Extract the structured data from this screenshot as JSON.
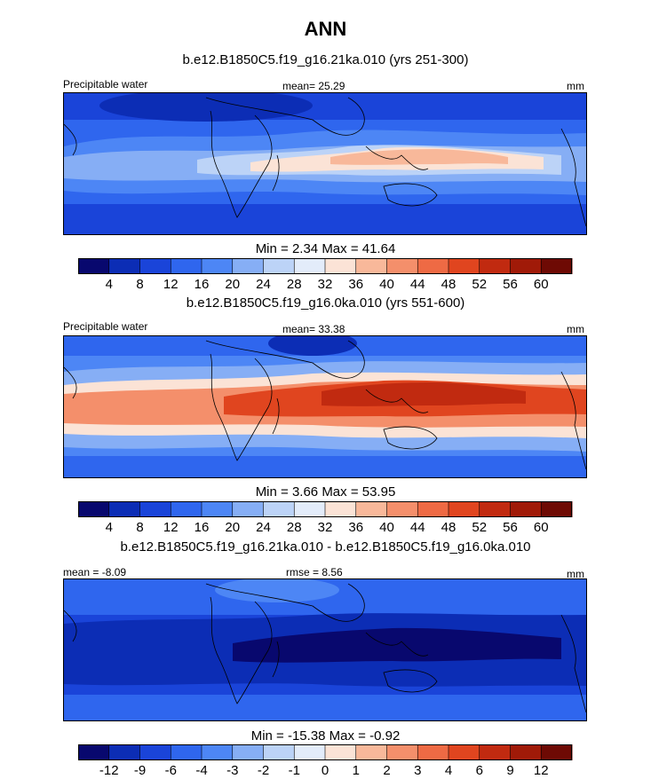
{
  "main_title": "ANN",
  "palettes": {
    "abs": [
      "#08086e",
      "#0c2db5",
      "#1a44d9",
      "#2f66ee",
      "#4d86f5",
      "#86aef5",
      "#bcd3f7",
      "#e3ecfa",
      "#fbe3d6",
      "#f8b89a",
      "#f48f6b",
      "#ee6a44",
      "#e0451f",
      "#c12a10",
      "#a01a08",
      "#6e0a04"
    ],
    "diff": [
      "#08086e",
      "#0c2db5",
      "#1a44d9",
      "#2f66ee",
      "#4d86f5",
      "#86aef5",
      "#bcd3f7",
      "#e3ecfa",
      "#fbe3d6",
      "#f8b89a",
      "#f48f6b",
      "#ee6a44",
      "#e0451f",
      "#c12a10",
      "#a01a08",
      "#6e0a04"
    ]
  },
  "panels": [
    {
      "title": "b.e12.B1850C5.f19_g16.21ka.010 (yrs 251-300)",
      "left_label": "Precipitable water",
      "center_label": "mean=  25.29",
      "right_label": "mm",
      "min_max": "Min =    2.34 Max =  41.64",
      "colorbar_labels": [
        "4",
        "8",
        "12",
        "16",
        "20",
        "24",
        "28",
        "32",
        "36",
        "40",
        "44",
        "48",
        "52",
        "56",
        "60"
      ],
      "palette": "abs"
    },
    {
      "title": "b.e12.B1850C5.f19_g16.0ka.010 (yrs 551-600)",
      "left_label": "Precipitable water",
      "center_label": "mean=  33.38",
      "right_label": "mm",
      "min_max": "Min =    3.66 Max =  53.95",
      "colorbar_labels": [
        "4",
        "8",
        "12",
        "16",
        "20",
        "24",
        "28",
        "32",
        "36",
        "40",
        "44",
        "48",
        "52",
        "56",
        "60"
      ],
      "palette": "abs"
    },
    {
      "title": "b.e12.B1850C5.f19_g16.21ka.010 - b.e12.B1850C5.f19_g16.0ka.010",
      "left_label": "mean =  -8.09",
      "center_label": "rmse =   8.56",
      "right_label": "mm",
      "min_max": "Min = -15.38 Max =  -0.92",
      "colorbar_labels": [
        "-12",
        "-9",
        "-6",
        "-4",
        "-3",
        "-2",
        "-1",
        "0",
        "1",
        "2",
        "3",
        "4",
        "6",
        "9",
        "12"
      ],
      "palette": "diff"
    }
  ],
  "chart_data": [
    {
      "type": "heatmap",
      "title": "b.e12.B1850C5.f19_g16.21ka.010 (yrs 251-300)",
      "variable": "Precipitable water",
      "units": "mm",
      "mean": 25.29,
      "min": 2.34,
      "max": 41.64,
      "contour_levels": [
        4,
        8,
        12,
        16,
        20,
        24,
        28,
        32,
        36,
        40,
        44,
        48,
        52,
        56,
        60
      ]
    },
    {
      "type": "heatmap",
      "title": "b.e12.B1850C5.f19_g16.0ka.010 (yrs 551-600)",
      "variable": "Precipitable water",
      "units": "mm",
      "mean": 33.38,
      "min": 3.66,
      "max": 53.95,
      "contour_levels": [
        4,
        8,
        12,
        16,
        20,
        24,
        28,
        32,
        36,
        40,
        44,
        48,
        52,
        56,
        60
      ]
    },
    {
      "type": "heatmap",
      "title": "b.e12.B1850C5.f19_g16.21ka.010 - b.e12.B1850C5.f19_g16.0ka.010",
      "units": "mm",
      "mean": -8.09,
      "rmse": 8.56,
      "min": -15.38,
      "max": -0.92,
      "contour_levels": [
        -12,
        -9,
        -6,
        -4,
        -3,
        -2,
        -1,
        0,
        1,
        2,
        3,
        4,
        6,
        9,
        12
      ]
    }
  ]
}
